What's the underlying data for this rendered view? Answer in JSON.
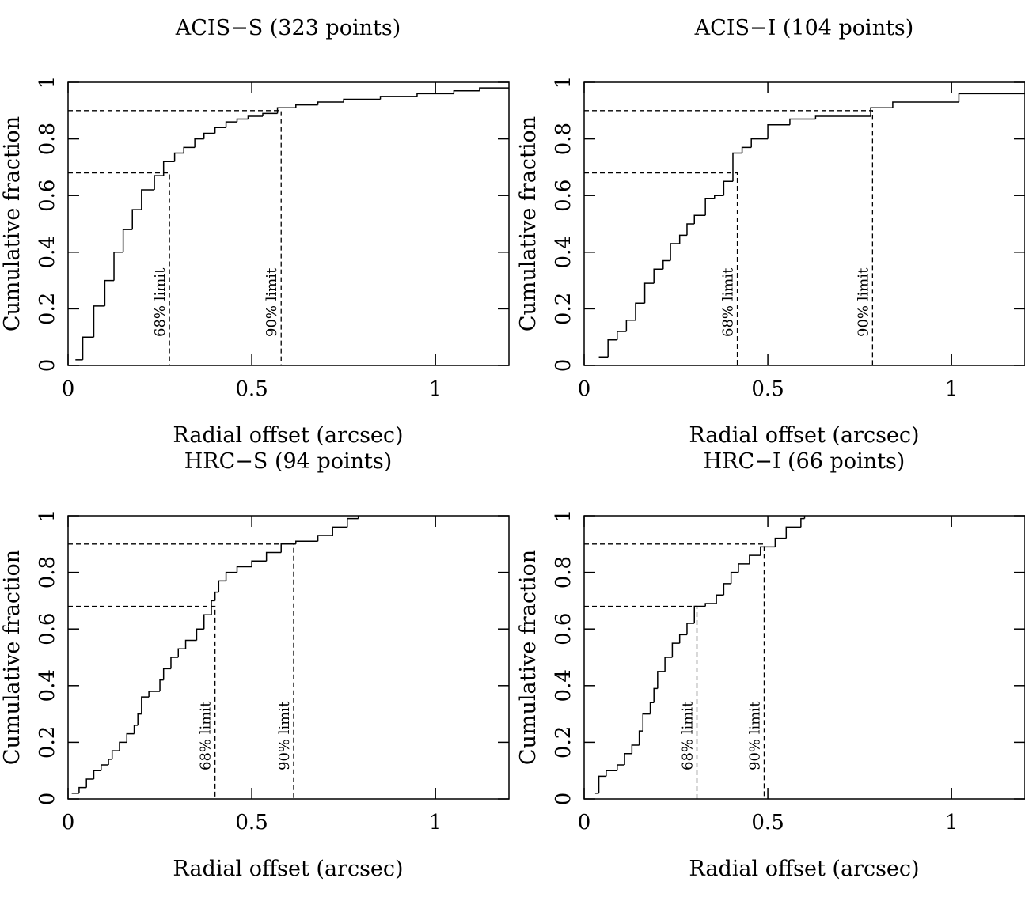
{
  "chart_data": [
    {
      "type": "step",
      "title": "ACIS−S (323 points)",
      "xlabel": "Radial offset (arcsec)",
      "ylabel": "Cumulative fraction",
      "xlim": [
        0,
        1.2
      ],
      "ylim": [
        0,
        1
      ],
      "xticks": [
        0,
        0.5,
        1
      ],
      "yticks": [
        0,
        0.2,
        0.4,
        0.6,
        0.8,
        1
      ],
      "x": [
        0.02,
        0.04,
        0.07,
        0.1,
        0.125,
        0.15,
        0.175,
        0.2,
        0.235,
        0.26,
        0.29,
        0.315,
        0.345,
        0.37,
        0.4,
        0.43,
        0.46,
        0.49,
        0.53,
        0.57,
        0.62,
        0.68,
        0.75,
        0.85,
        0.95,
        1.05,
        1.12,
        1.2
      ],
      "y": [
        0.02,
        0.1,
        0.21,
        0.3,
        0.4,
        0.48,
        0.55,
        0.62,
        0.67,
        0.72,
        0.75,
        0.77,
        0.8,
        0.82,
        0.84,
        0.86,
        0.87,
        0.88,
        0.89,
        0.91,
        0.92,
        0.93,
        0.94,
        0.95,
        0.96,
        0.97,
        0.98,
        0.98
      ],
      "limits": [
        {
          "label": "68% limit",
          "x": 0.276,
          "y": 0.68
        },
        {
          "label": "90% limit",
          "x": 0.58,
          "y": 0.9
        }
      ]
    },
    {
      "type": "step",
      "title": "ACIS−I (104 points)",
      "xlabel": "Radial offset (arcsec)",
      "ylabel": "Cumulative fraction",
      "xlim": [
        0,
        1.2
      ],
      "ylim": [
        0,
        1
      ],
      "xticks": [
        0,
        0.5,
        1
      ],
      "yticks": [
        0,
        0.2,
        0.4,
        0.6,
        0.8,
        1
      ],
      "x": [
        0.04,
        0.065,
        0.09,
        0.115,
        0.14,
        0.165,
        0.19,
        0.215,
        0.235,
        0.26,
        0.28,
        0.3,
        0.33,
        0.355,
        0.38,
        0.405,
        0.43,
        0.455,
        0.5,
        0.56,
        0.63,
        0.78,
        0.84,
        1.02,
        1.2
      ],
      "y": [
        0.03,
        0.09,
        0.12,
        0.16,
        0.22,
        0.29,
        0.34,
        0.37,
        0.43,
        0.46,
        0.5,
        0.53,
        0.59,
        0.6,
        0.65,
        0.75,
        0.77,
        0.8,
        0.85,
        0.87,
        0.88,
        0.91,
        0.93,
        0.96,
        0.96
      ],
      "limits": [
        {
          "label": "68% limit",
          "x": 0.417,
          "y": 0.68
        },
        {
          "label": "90% limit",
          "x": 0.785,
          "y": 0.9
        }
      ]
    },
    {
      "type": "step",
      "title": "HRC−S (94 points)",
      "xlabel": "Radial offset (arcsec)",
      "ylabel": "Cumulative fraction",
      "xlim": [
        0,
        1.2
      ],
      "ylim": [
        0,
        1
      ],
      "xticks": [
        0,
        0.5,
        1
      ],
      "yticks": [
        0,
        0.2,
        0.4,
        0.6,
        0.8,
        1
      ],
      "x": [
        0.01,
        0.03,
        0.05,
        0.07,
        0.09,
        0.11,
        0.12,
        0.14,
        0.16,
        0.18,
        0.19,
        0.2,
        0.22,
        0.25,
        0.26,
        0.28,
        0.3,
        0.32,
        0.35,
        0.37,
        0.39,
        0.4,
        0.41,
        0.43,
        0.46,
        0.5,
        0.54,
        0.58,
        0.62,
        0.68,
        0.72,
        0.76,
        0.79
      ],
      "y": [
        0.02,
        0.04,
        0.07,
        0.1,
        0.12,
        0.14,
        0.17,
        0.2,
        0.23,
        0.26,
        0.3,
        0.36,
        0.38,
        0.42,
        0.46,
        0.5,
        0.53,
        0.56,
        0.6,
        0.65,
        0.7,
        0.73,
        0.77,
        0.8,
        0.82,
        0.84,
        0.87,
        0.9,
        0.91,
        0.93,
        0.96,
        0.99,
        1
      ],
      "limits": [
        {
          "label": "68% limit",
          "x": 0.4,
          "y": 0.68
        },
        {
          "label": "90% limit",
          "x": 0.614,
          "y": 0.9
        }
      ]
    },
    {
      "type": "step",
      "title": "HRC−I (66 points)",
      "xlabel": "Radial offset (arcsec)",
      "ylabel": "Cumulative fraction",
      "xlim": [
        0,
        1.2
      ],
      "ylim": [
        0,
        1
      ],
      "xticks": [
        0,
        0.5,
        1
      ],
      "yticks": [
        0,
        0.2,
        0.4,
        0.6,
        0.8,
        1
      ],
      "x": [
        0.03,
        0.04,
        0.06,
        0.09,
        0.11,
        0.13,
        0.15,
        0.16,
        0.18,
        0.19,
        0.2,
        0.22,
        0.24,
        0.26,
        0.28,
        0.3,
        0.33,
        0.36,
        0.38,
        0.4,
        0.42,
        0.45,
        0.48,
        0.52,
        0.55,
        0.59,
        0.6
      ],
      "y": [
        0.02,
        0.08,
        0.1,
        0.12,
        0.16,
        0.19,
        0.24,
        0.3,
        0.34,
        0.39,
        0.45,
        0.5,
        0.55,
        0.58,
        0.62,
        0.68,
        0.69,
        0.72,
        0.76,
        0.8,
        0.83,
        0.86,
        0.89,
        0.92,
        0.96,
        0.99,
        1
      ],
      "limits": [
        {
          "label": "68% limit",
          "x": 0.307,
          "y": 0.68
        },
        {
          "label": "90% limit",
          "x": 0.49,
          "y": 0.9
        }
      ]
    }
  ]
}
